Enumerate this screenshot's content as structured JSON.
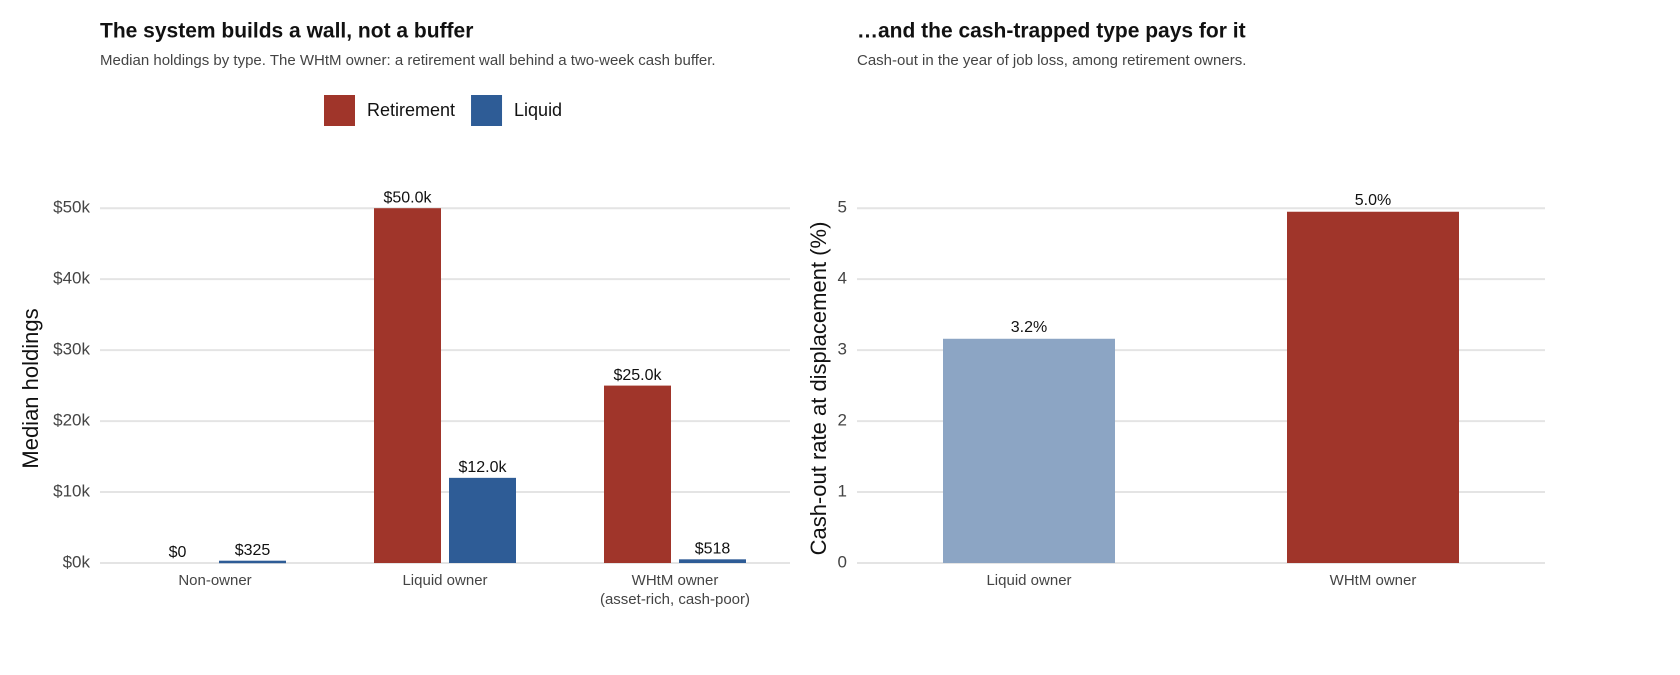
{
  "chart_data": [
    {
      "type": "grouped_bar",
      "title": "The system builds a wall, not a buffer",
      "subtitle": "Median holdings by type. The WHtM owner: a retirement wall behind a two-week cash buffer.",
      "ylabel": "Median holdings",
      "categories": [
        "Non-owner",
        "Liquid owner",
        "WHtM owner\n(asset-rich, cash-poor)"
      ],
      "series": [
        {
          "name": "Retirement",
          "color": "#a0352a",
          "values": [
            0,
            50000,
            25000
          ],
          "value_labels": [
            "$0",
            "$50.0k",
            "$25.0k"
          ]
        },
        {
          "name": "Liquid",
          "color": "#2e5c96",
          "values": [
            325,
            12000,
            518
          ],
          "value_labels": [
            "$325",
            "$12.0k",
            "$518"
          ]
        }
      ],
      "ylim": [
        0,
        52000
      ],
      "yticks": [
        {
          "value": 0,
          "label": "$0k"
        },
        {
          "value": 10000,
          "label": "$10k"
        },
        {
          "value": 20000,
          "label": "$20k"
        },
        {
          "value": 30000,
          "label": "$30k"
        },
        {
          "value": 40000,
          "label": "$40k"
        },
        {
          "value": 50000,
          "label": "$50k"
        }
      ],
      "grid": true,
      "legend": "top"
    },
    {
      "type": "bar",
      "title": "…and the cash-trapped type pays for it",
      "subtitle": "Cash-out in the year of job loss, among retirement owners.",
      "ylabel": "Cash-out rate at displacement (%)",
      "categories": [
        "Liquid owner",
        "WHtM owner"
      ],
      "values": [
        3.16,
        4.95
      ],
      "value_labels": [
        "3.2%",
        "5.0%"
      ],
      "colors": [
        "#8ca5c4",
        "#a0352a"
      ],
      "ylim": [
        0,
        5.2
      ],
      "yticks": [
        0,
        1,
        2,
        3,
        4,
        5
      ],
      "grid": true
    }
  ]
}
